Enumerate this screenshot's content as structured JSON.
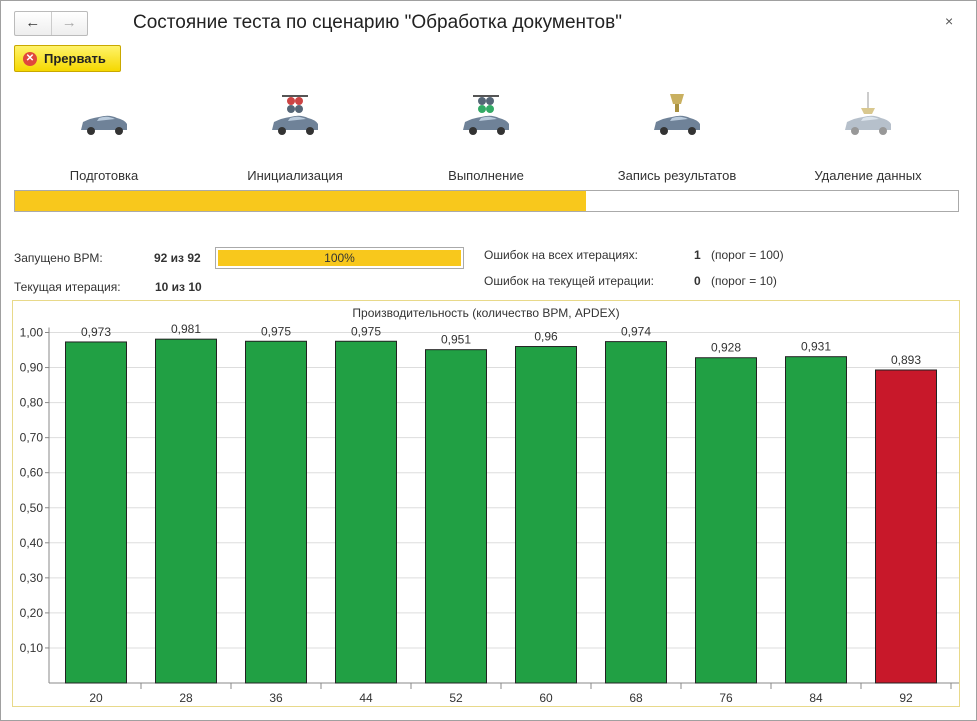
{
  "window": {
    "title": "Состояние теста по сценарию \"Обработка документов\"",
    "back_icon": "arrow-left-icon",
    "forward_icon": "arrow-right-icon",
    "close_label": "×"
  },
  "toolbar": {
    "abort_label": "Прервать"
  },
  "stages": [
    {
      "label": "Подготовка"
    },
    {
      "label": "Инициализация"
    },
    {
      "label": "Выполнение"
    },
    {
      "label": "Запись результатов"
    },
    {
      "label": "Удаление данных"
    }
  ],
  "overall_progress": 0.605,
  "stats": {
    "launched_label": "Запущено ВРМ:",
    "launched_value": "92 из 92",
    "launched_percent": "100%",
    "iteration_label": "Текущая итерация:",
    "iteration_value": "10 из 10",
    "errors_all_label": "Ошибок на всех итерациях:",
    "errors_all_value": "1",
    "errors_all_threshold": "(порог = 100)",
    "errors_cur_label": "Ошибок на текущей итерации:",
    "errors_cur_value": "0",
    "errors_cur_threshold": "(порог = 10)"
  },
  "chart_data": {
    "type": "bar",
    "title": "Производительность (количество ВРМ, APDEX)",
    "categories": [
      "20",
      "28",
      "36",
      "44",
      "52",
      "60",
      "68",
      "76",
      "84",
      "92"
    ],
    "values": [
      0.973,
      0.981,
      0.975,
      0.975,
      0.951,
      0.96,
      0.974,
      0.928,
      0.931,
      0.893
    ],
    "value_labels": [
      "0,973",
      "0,981",
      "0,975",
      "0,975",
      "0,951",
      "0,96",
      "0,974",
      "0,928",
      "0,931",
      "0,893"
    ],
    "ylim": [
      0,
      1
    ],
    "yticks": [
      "0,10",
      "0,20",
      "0,30",
      "0,40",
      "0,50",
      "0,60",
      "0,70",
      "0,80",
      "0,90",
      "1,00"
    ],
    "grid": true,
    "colors": [
      "#21a044",
      "#21a044",
      "#21a044",
      "#21a044",
      "#21a044",
      "#21a044",
      "#21a044",
      "#21a044",
      "#21a044",
      "#c8182a"
    ]
  }
}
